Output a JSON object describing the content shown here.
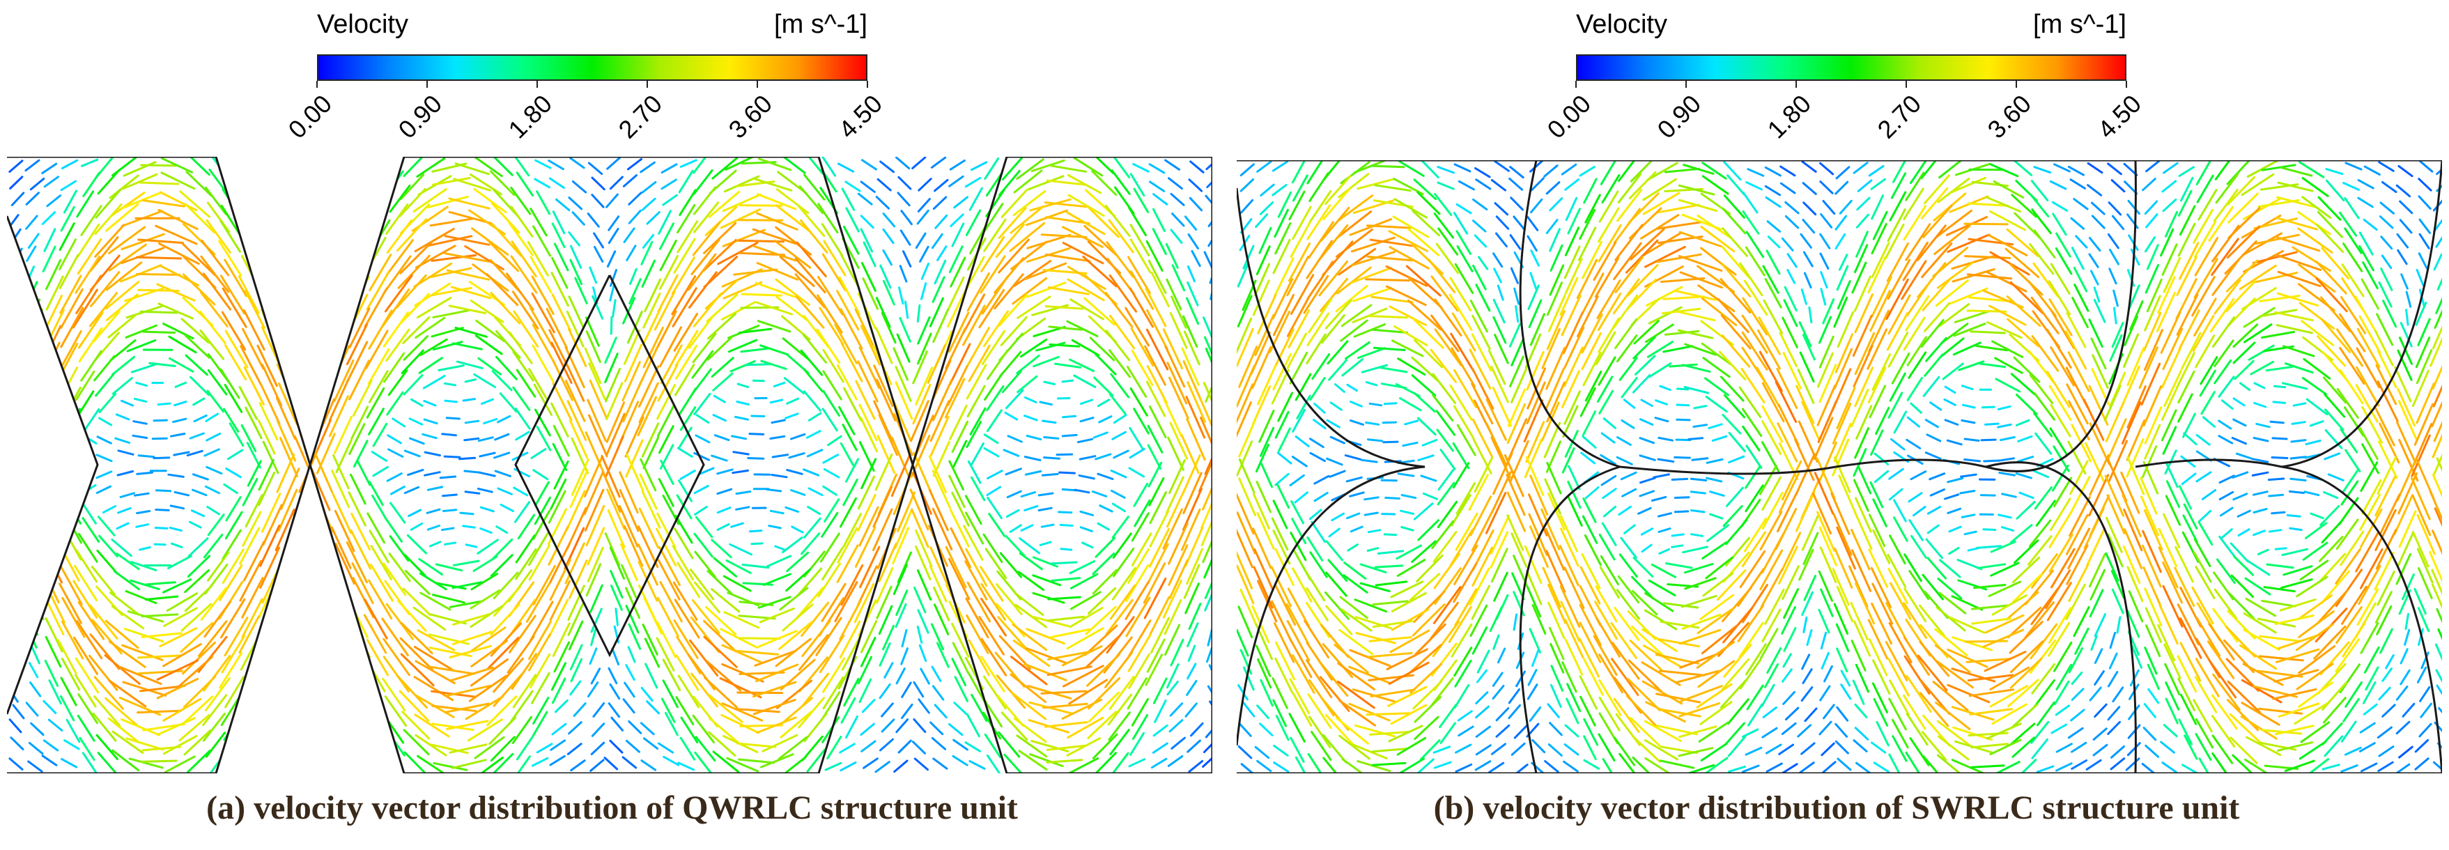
{
  "colorbar": {
    "colors": [
      "#0000ff",
      "#0080ff",
      "#00e6ff",
      "#00ff80",
      "#00ee00",
      "#aaee00",
      "#ffee00",
      "#ff9900",
      "#ff0000"
    ]
  },
  "panels": [
    {
      "legend": {
        "title": "Velocity",
        "unit": "[m s^-1]",
        "ticks": [
          "0.00",
          "0.90",
          "1.80",
          "2.70",
          "3.60",
          "4.50"
        ]
      },
      "structure": "QWRLC",
      "caption": "(a) velocity vector distribution of QWRLC structure unit"
    },
    {
      "legend": {
        "title": "Velocity",
        "unit": "[m s^-1]",
        "ticks": [
          "0.00",
          "0.90",
          "1.80",
          "2.70",
          "3.60",
          "4.50"
        ]
      },
      "structure": "SWRLC",
      "caption": "(b) velocity vector distribution of SWRLC structure unit"
    }
  ]
}
